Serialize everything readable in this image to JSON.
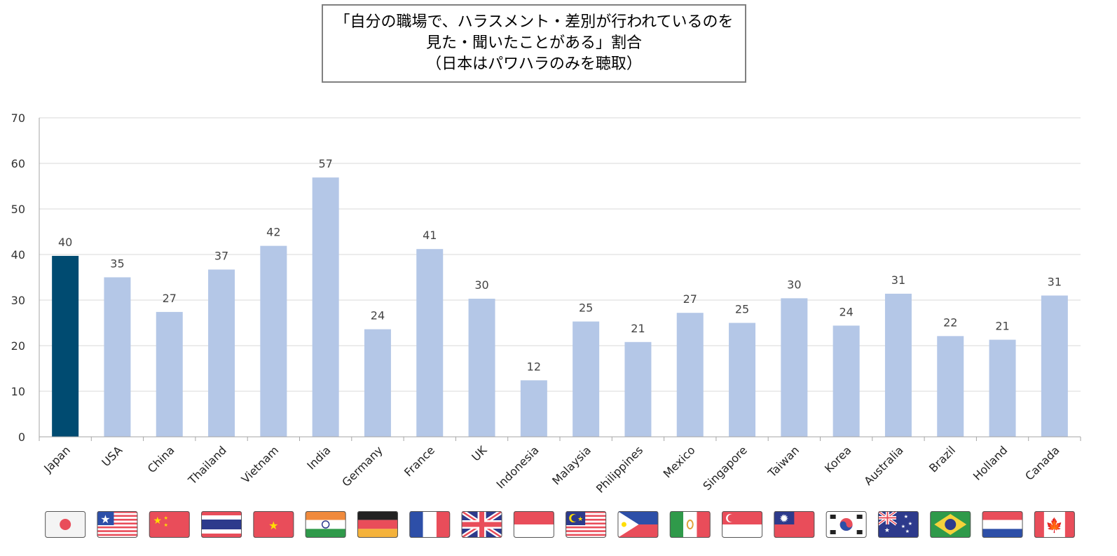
{
  "chart_data": {
    "type": "bar",
    "title": [
      "「自分の職場で、ハラスメント・差別が行われているのを",
      "見た・聞いたことがある」割合",
      "（日本はパワハラのみを聴取）"
    ],
    "xlabel": "",
    "ylabel": "",
    "ylim": [
      0,
      70
    ],
    "yticks": [
      0,
      10,
      20,
      30,
      40,
      50,
      60,
      70
    ],
    "grid": true,
    "categories": [
      "Japan",
      "USA",
      "China",
      "Thailand",
      "Vietnam",
      "India",
      "Germany",
      "France",
      "UK",
      "Indonesia",
      "Malaysia",
      "Philippines",
      "Mexico",
      "Singapore",
      "Taiwan",
      "Korea",
      "Australia",
      "Brazil",
      "Holland",
      "Canada"
    ],
    "values": [
      39.7,
      35.0,
      27.4,
      36.7,
      41.9,
      56.9,
      23.6,
      41.2,
      30.3,
      12.4,
      25.3,
      20.8,
      27.2,
      25.0,
      30.4,
      24.4,
      31.4,
      22.1,
      21.3,
      31.0
    ],
    "data_labels": [
      "40",
      "35",
      "27",
      "37",
      "42",
      "57",
      "24",
      "41",
      "30",
      "12",
      "25",
      "21",
      "27",
      "25",
      "30",
      "24",
      "31",
      "22",
      "21",
      "31"
    ],
    "colors": {
      "highlight": "#004b71",
      "default": "#b4c7e7",
      "grid": "#d9d9d9",
      "axis": "#a6a6a6"
    },
    "highlight_index": 0,
    "flag_icons": [
      "japan-flag-icon",
      "usa-flag-icon",
      "china-flag-icon",
      "thailand-flag-icon",
      "vietnam-flag-icon",
      "india-flag-icon",
      "germany-flag-icon",
      "france-flag-icon",
      "uk-flag-icon",
      "indonesia-flag-icon",
      "malaysia-flag-icon",
      "philippines-flag-icon",
      "mexico-flag-icon",
      "singapore-flag-icon",
      "taiwan-flag-icon",
      "korea-flag-icon",
      "australia-flag-icon",
      "brazil-flag-icon",
      "holland-flag-icon",
      "canada-flag-icon"
    ]
  }
}
